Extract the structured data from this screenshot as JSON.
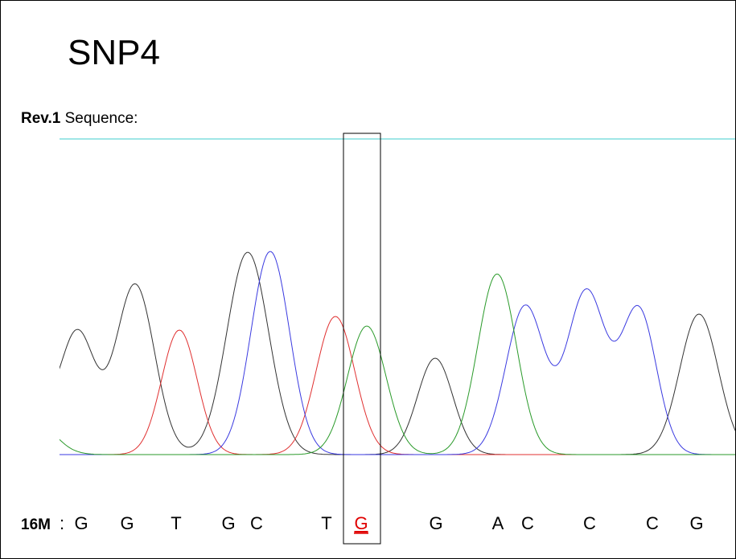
{
  "title": "SNP4",
  "subtitle": {
    "label": "Rev.1",
    "text": "Sequence:"
  },
  "sequence": {
    "sample": "16M",
    "separator": ":",
    "bases": [
      "G",
      "G",
      "T",
      "G",
      "C",
      "T",
      "G",
      "G",
      "A",
      "C",
      "C",
      "C",
      "G"
    ]
  }
}
